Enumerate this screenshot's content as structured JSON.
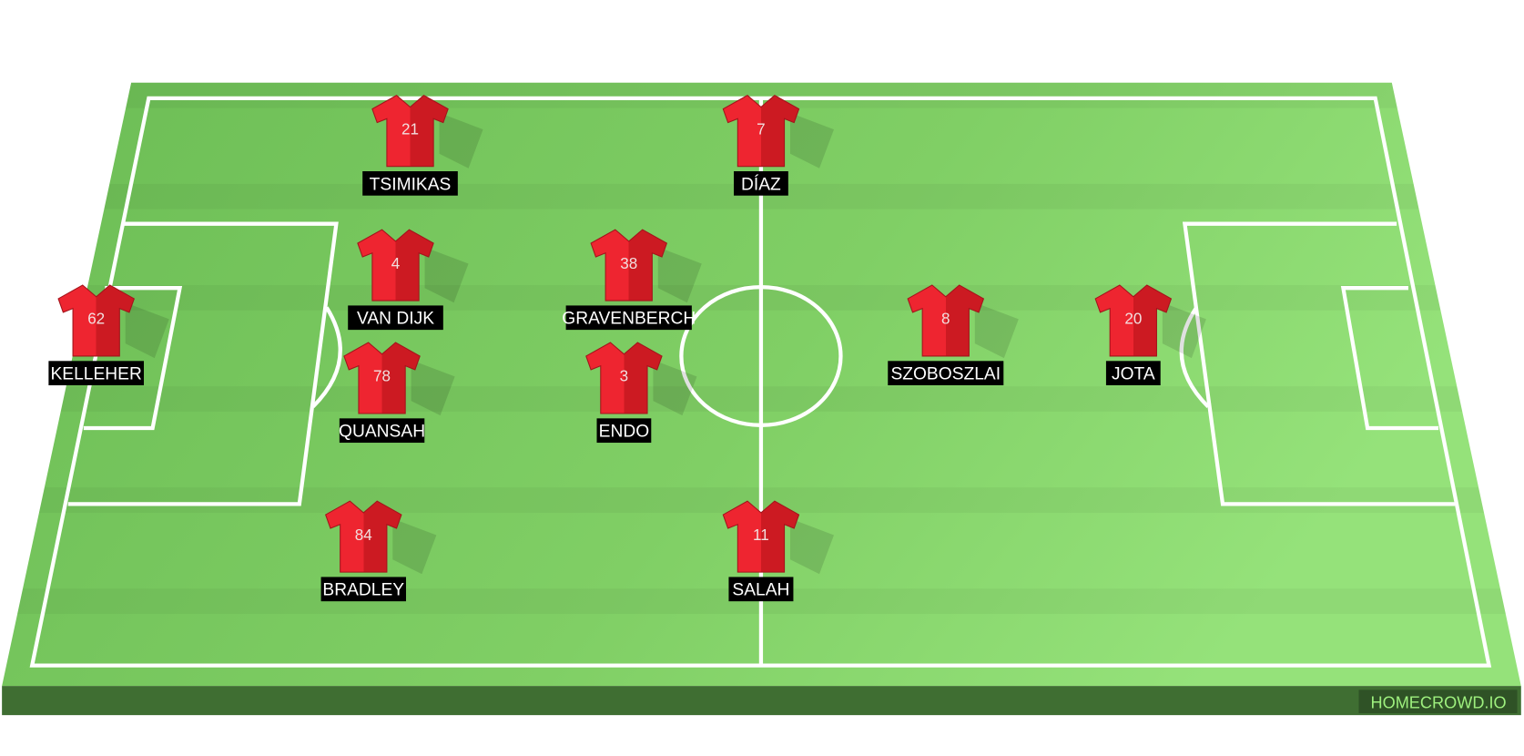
{
  "watermark": "HOMECROWD.IO",
  "colors": {
    "pitch_light": "#8fdc72",
    "pitch_dark": "#6fbf57",
    "shirt": "#e3202a",
    "label_bg": "#000000",
    "watermark_text": "#9ef07e"
  },
  "players": [
    {
      "name": "TSIMIKAS",
      "number": "21"
    },
    {
      "name": "DÍAZ",
      "number": "7"
    },
    {
      "name": "VAN DIJK",
      "number": "4"
    },
    {
      "name": "GRAVENBERCH",
      "number": "38"
    },
    {
      "name": "KELLEHER",
      "number": "62"
    },
    {
      "name": "SZOBOSZLAI",
      "number": "8"
    },
    {
      "name": "JOTA",
      "number": "20"
    },
    {
      "name": "QUANSAH",
      "number": "78"
    },
    {
      "name": "ENDO",
      "number": "3"
    },
    {
      "name": "BRADLEY",
      "number": "84"
    },
    {
      "name": "SALAH",
      "number": "11"
    }
  ]
}
